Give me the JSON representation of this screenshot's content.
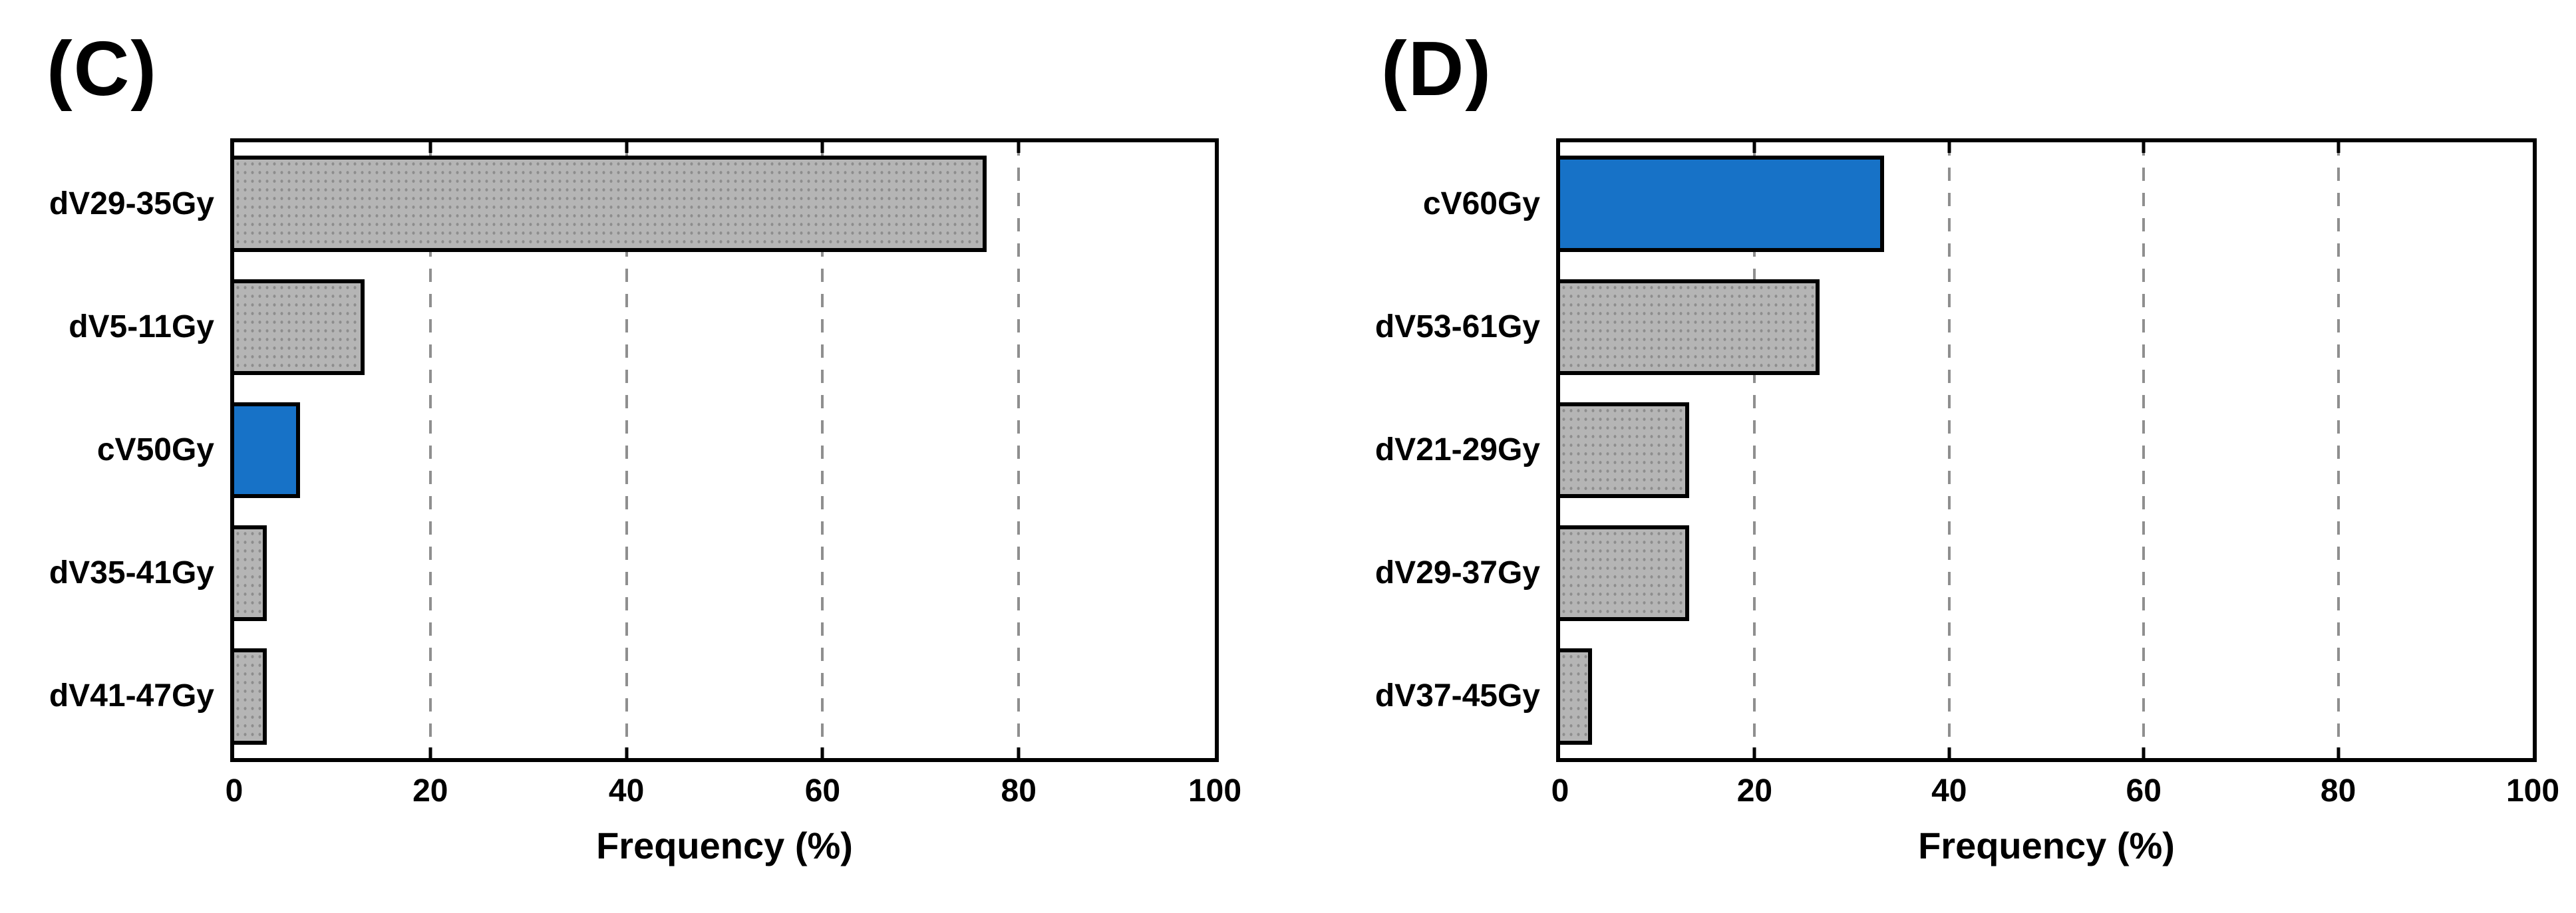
{
  "colors": {
    "background": "#ffffff",
    "bar_gray": "#b5b5b5",
    "bar_gray_dot": "#8a8a8a",
    "bar_highlight_blue": "#1772c7",
    "bar_border": "#000000",
    "frame": "#000000",
    "gridline": "#8f8f8f",
    "text": "#000000"
  },
  "chart_data": [
    {
      "type": "bar",
      "orientation": "horizontal",
      "panel_label": "(C)",
      "categories": [
        "dV29-35Gy",
        "dV5-11Gy",
        "cV50Gy",
        "dV35-41Gy",
        "dV41-47Gy"
      ],
      "values": [
        76.7,
        13.3,
        6.7,
        3.3,
        3.3
      ],
      "highlight_index": 2,
      "highlight_category": "cV50Gy",
      "xlabel": "Frequency (%)",
      "xlim": [
        0,
        100
      ],
      "xticks": [
        0,
        20,
        40,
        60,
        80,
        100
      ],
      "gridlines": [
        20,
        40,
        60,
        80
      ],
      "grid_style": "dashed",
      "legend": "none"
    },
    {
      "type": "bar",
      "orientation": "horizontal",
      "panel_label": "(D)",
      "categories": [
        "cV60Gy",
        "dV53-61Gy",
        "dV21-29Gy",
        "dV29-37Gy",
        "dV37-45Gy"
      ],
      "values": [
        33.3,
        26.7,
        13.3,
        13.3,
        3.3
      ],
      "highlight_index": 0,
      "highlight_category": "cV60Gy",
      "xlabel": "Frequency (%)",
      "xlim": [
        0,
        100
      ],
      "xticks": [
        0,
        20,
        40,
        60,
        80,
        100
      ],
      "gridlines": [
        20,
        40,
        60,
        80
      ],
      "grid_style": "dashed",
      "legend": "none"
    }
  ]
}
